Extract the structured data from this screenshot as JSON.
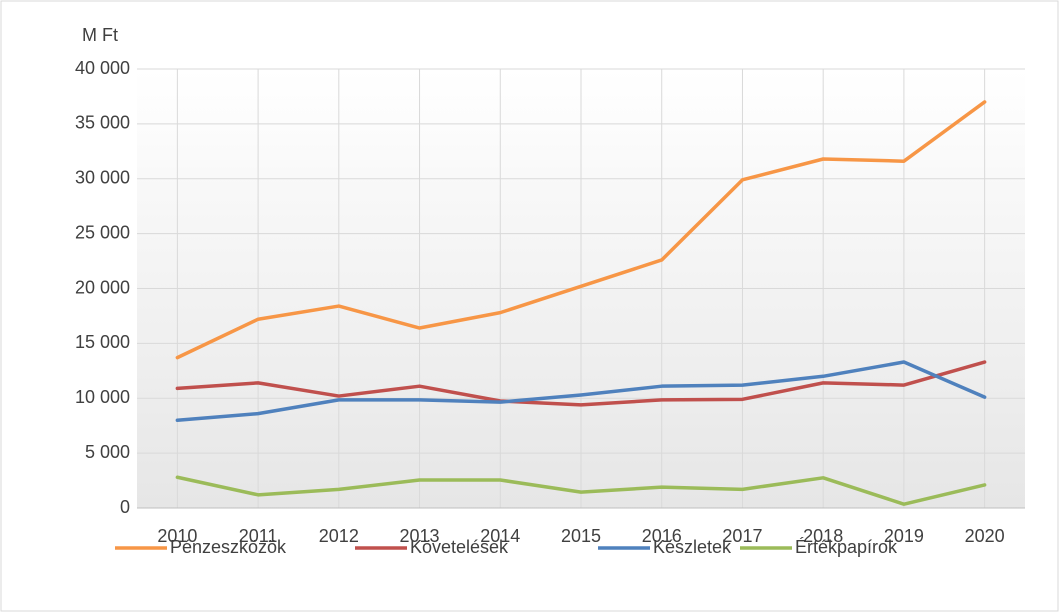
{
  "chart_data": {
    "type": "line",
    "y_label": "M Ft",
    "categories": [
      "2010",
      "2011",
      "2012",
      "2013",
      "2014",
      "2015",
      "2016",
      "2017",
      "2018",
      "2019",
      "2020"
    ],
    "series": [
      {
        "name": "Pénzeszközök",
        "color": "#f79646",
        "values": [
          13700,
          17200,
          18400,
          16400,
          17800,
          20200,
          22600,
          29900,
          31800,
          31600,
          37000
        ]
      },
      {
        "name": "Követelések",
        "color": "#c0504d",
        "values": [
          10900,
          11400,
          10200,
          11100,
          9750,
          9400,
          9850,
          9900,
          11400,
          11200,
          13300
        ]
      },
      {
        "name": "Készletek",
        "color": "#4f81bd",
        "values": [
          8000,
          8600,
          9850,
          9850,
          9650,
          10300,
          11100,
          11200,
          12000,
          13300,
          10100
        ]
      },
      {
        "name": "Értékpapírok",
        "color": "#9bbb59",
        "values": [
          2800,
          1200,
          1700,
          2550,
          2550,
          1450,
          1900,
          1700,
          2750,
          350,
          2100
        ]
      }
    ],
    "ylim": [
      0,
      40000
    ],
    "yticks": [
      0,
      {
        "value": 5000,
        "label": "5 000"
      },
      {
        "value": 10000,
        "label": "10 000"
      },
      {
        "value": 15000,
        "label": "15 000"
      },
      {
        "value": 20000,
        "label": "20 000"
      },
      {
        "value": 25000,
        "label": "25 000"
      },
      {
        "value": 30000,
        "label": "30 000"
      },
      {
        "value": 35000,
        "label": "35 000"
      },
      {
        "value": 40000,
        "label": "40 000"
      }
    ],
    "grid": true,
    "legend": "bottom"
  }
}
